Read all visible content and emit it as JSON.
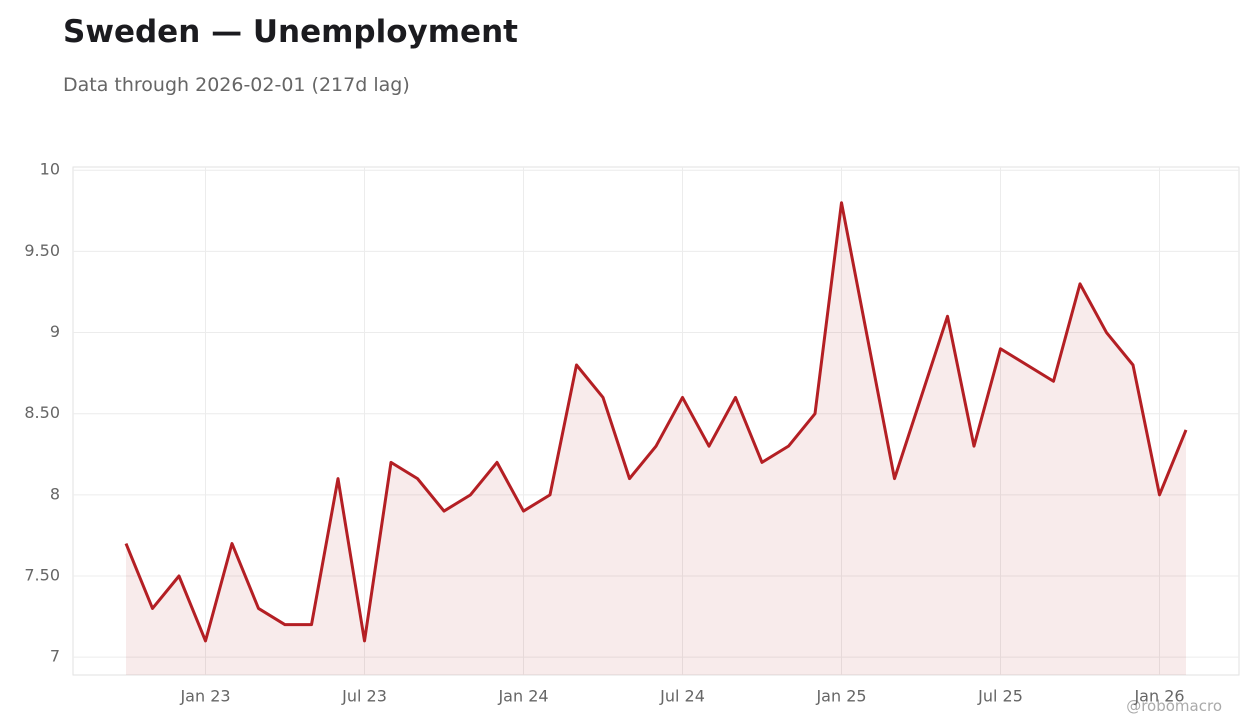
{
  "chart_data": {
    "type": "line",
    "title": "Sweden — Unemployment",
    "subtitle": "Data through 2026-02-01 (217d lag)",
    "watermark": "@robomacro",
    "color": "#b41f24",
    "x": [
      "2022-10",
      "2022-11",
      "2022-12",
      "2023-01",
      "2023-02",
      "2023-03",
      "2023-04",
      "2023-05",
      "2023-06",
      "2023-07",
      "2023-08",
      "2023-09",
      "2023-10",
      "2023-11",
      "2023-12",
      "2024-01",
      "2024-02",
      "2024-03",
      "2024-04",
      "2024-05",
      "2024-06",
      "2024-07",
      "2024-08",
      "2024-09",
      "2024-10",
      "2024-11",
      "2024-12",
      "2025-01",
      "2025-03",
      "2025-05",
      "2025-06",
      "2025-07",
      "2025-09",
      "2025-10",
      "2025-11",
      "2025-12",
      "2026-01",
      "2026-02"
    ],
    "values": [
      7.7,
      7.3,
      7.5,
      7.1,
      7.7,
      7.3,
      7.2,
      7.2,
      8.1,
      7.1,
      8.2,
      8.1,
      7.9,
      8.0,
      8.2,
      7.9,
      8.0,
      8.8,
      8.6,
      8.1,
      8.3,
      8.6,
      8.3,
      8.6,
      8.2,
      8.3,
      8.5,
      9.8,
      8.1,
      9.1,
      8.3,
      8.9,
      8.7,
      9.3,
      9.0,
      8.8,
      8.0,
      8.4
    ],
    "xlim": [
      "2022-08",
      "2026-04"
    ],
    "xticks": [
      {
        "value": "2023-01",
        "label": "Jan 23"
      },
      {
        "value": "2023-07",
        "label": "Jul 23"
      },
      {
        "value": "2024-01",
        "label": "Jan 24"
      },
      {
        "value": "2024-07",
        "label": "Jul 24"
      },
      {
        "value": "2025-01",
        "label": "Jan 25"
      },
      {
        "value": "2025-07",
        "label": "Jul 25"
      },
      {
        "value": "2026-01",
        "label": "Jan 26"
      }
    ],
    "ylim": [
      6.89,
      10.02
    ],
    "yticks": [
      7,
      {
        "value": 7.5,
        "label": "7.50"
      },
      8,
      {
        "value": 8.5,
        "label": "8.50"
      },
      9,
      {
        "value": 9.5,
        "label": "9.50"
      },
      10
    ],
    "grid": true
  }
}
